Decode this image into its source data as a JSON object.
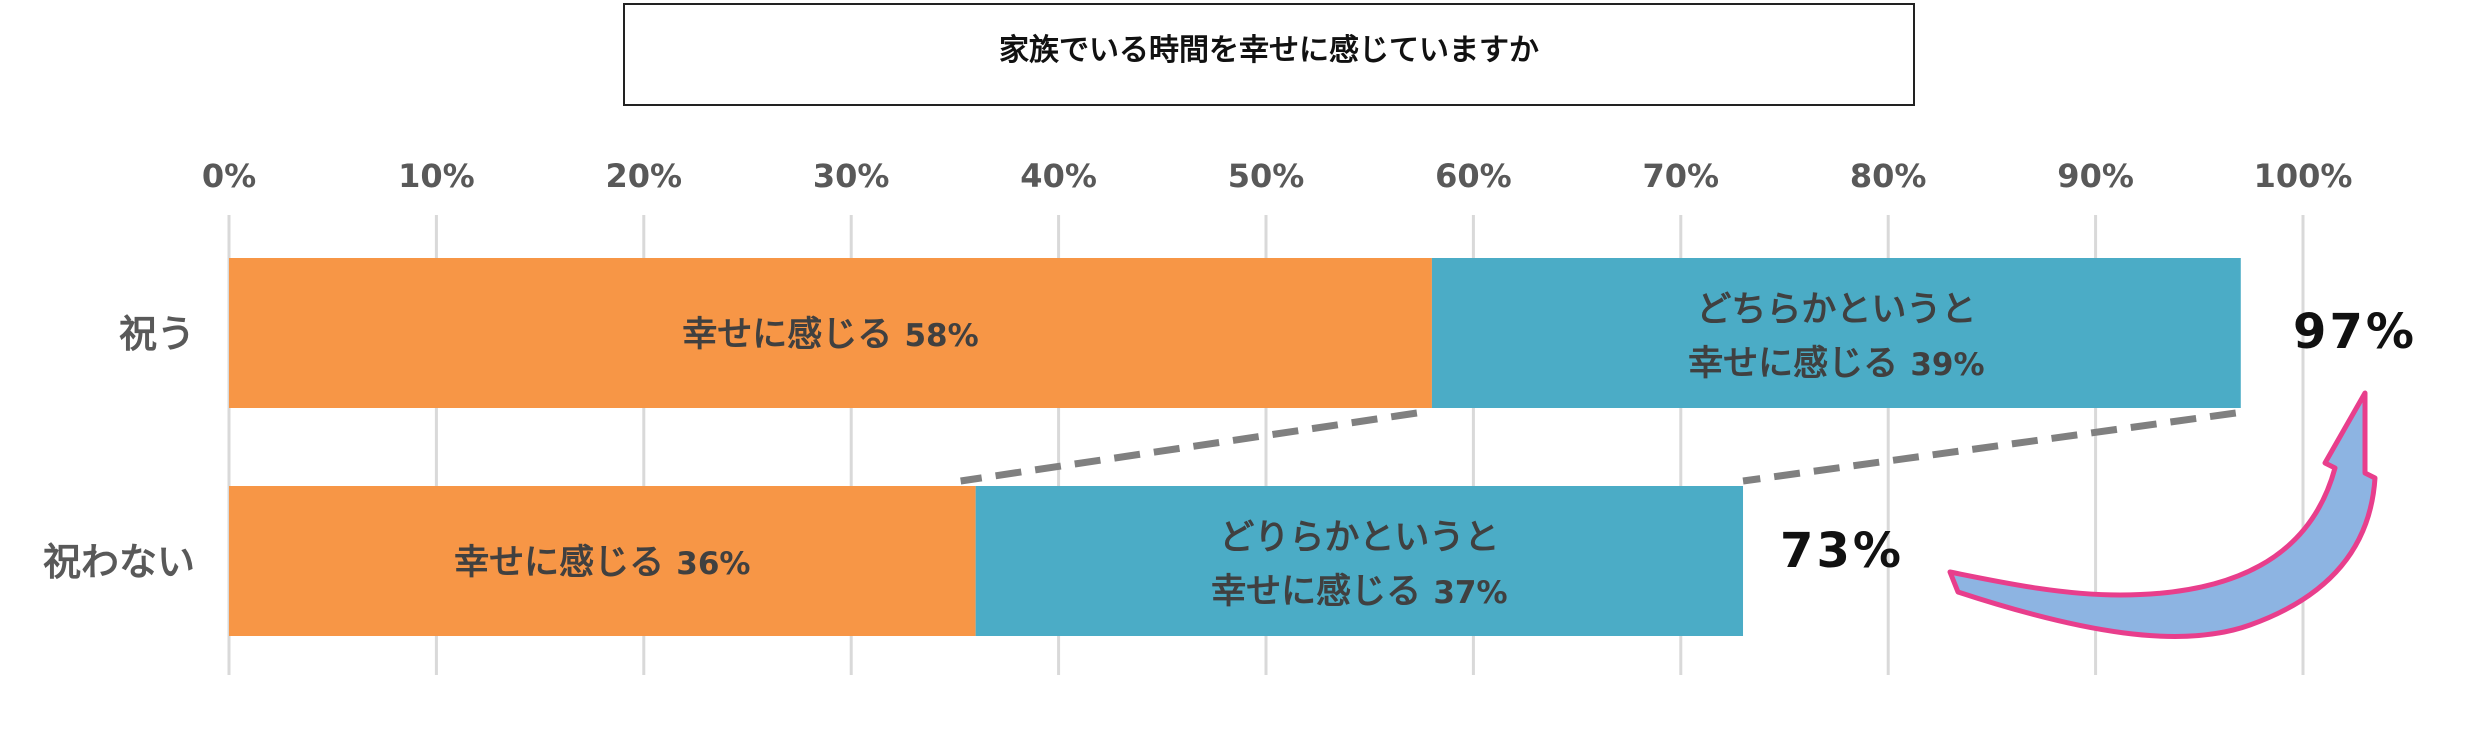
{
  "chart_data": {
    "type": "bar",
    "orientation": "horizontal",
    "stacked": true,
    "title": "家族でいる時間を幸せに感じていますか",
    "x_ticks": [
      "0%",
      "10%",
      "20%",
      "30%",
      "40%",
      "50%",
      "60%",
      "70%",
      "80%",
      "90%",
      "100%"
    ],
    "xlim": [
      0,
      100
    ],
    "grid": true,
    "categories": [
      "祝う",
      "祝わない"
    ],
    "series": [
      {
        "color": "#f79646",
        "values": [
          58,
          36
        ],
        "labels": [
          [
            "幸せに感じる",
            "58%"
          ],
          [
            "幸せに感じる",
            "36%"
          ]
        ]
      },
      {
        "color": "#4bacc6",
        "values": [
          39,
          37
        ],
        "labels": [
          [
            "どちらかというと",
            "幸せに感じる",
            "39%"
          ],
          [
            "どりらかというと",
            "幸せに感じる",
            "37%"
          ]
        ]
      }
    ],
    "totals": [
      "97%",
      "73%"
    ],
    "arrow_color": "#8db4e2",
    "arrow_outline": "#e83e8c",
    "connector_color": "#808080"
  }
}
